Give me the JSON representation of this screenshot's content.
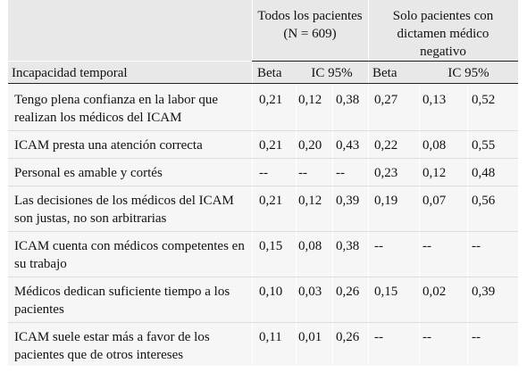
{
  "table": {
    "row_header": "Incapacidad temporal",
    "group1": {
      "line1": "Todos los pacientes",
      "line2": "(N = 609)"
    },
    "group2": {
      "line1": "Solo pacientes con",
      "line2": "dictamen médico",
      "line3": "negativo"
    },
    "subheaders": [
      "Beta",
      "IC 95%",
      "Beta",
      "IC 95%"
    ],
    "rows": [
      {
        "label": "Tengo plena confianza en la labor que realizan los médicos del ICAM",
        "values": [
          "0,21",
          "0,12",
          "0,38",
          "0,27",
          "0,13",
          "0,52"
        ]
      },
      {
        "label": "ICAM presta una atención correcta",
        "values": [
          "0,21",
          "0,20",
          "0,43",
          "0,22",
          "0,08",
          "0,55"
        ]
      },
      {
        "label": "Personal es amable y cortés",
        "values": [
          "--",
          "--",
          "--",
          "0,23",
          "0,12",
          "0,48"
        ]
      },
      {
        "label": "Las decisiones de los médicos del ICAM son justas, no son arbitrarias",
        "values": [
          "0,21",
          "0,12",
          "0,39",
          "0,19",
          "0,07",
          "0,56"
        ]
      },
      {
        "label": "ICAM cuenta con médicos competentes en su trabajo",
        "values": [
          "0,15",
          "0,08",
          "0,38",
          "--",
          "--",
          "--"
        ]
      },
      {
        "label": "Médicos dedican suficiente tiempo a los pacientes",
        "values": [
          "0,10",
          "0,03",
          "0,26",
          "0,15",
          "0,02",
          "0,39"
        ]
      },
      {
        "label": "ICAM suele estar más a favor de los pacientes que de otros intereses",
        "values": [
          "0,11",
          "0,01",
          "0,26",
          "--",
          "--",
          "--"
        ]
      }
    ]
  }
}
